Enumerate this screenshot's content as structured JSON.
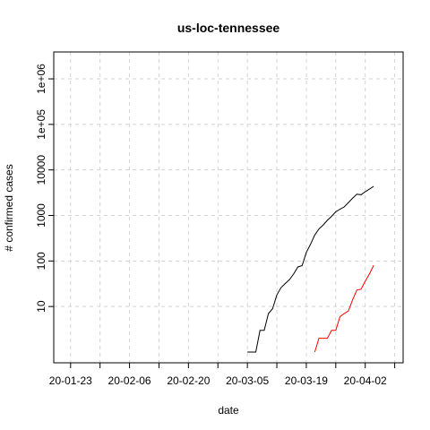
{
  "chart_data": {
    "type": "line",
    "title": "us-loc-tennessee",
    "x_label": "date",
    "y_label": "# confirmed cases",
    "log_y": true,
    "grid": true,
    "x": [
      "20-03-05",
      "20-03-06",
      "20-03-07",
      "20-03-08",
      "20-03-09",
      "20-03-10",
      "20-03-11",
      "20-03-12",
      "20-03-13",
      "20-03-14",
      "20-03-15",
      "20-03-16",
      "20-03-17",
      "20-03-18",
      "20-03-19",
      "20-03-20",
      "20-03-21",
      "20-03-22",
      "20-03-23",
      "20-03-24",
      "20-03-25",
      "20-03-26",
      "20-03-27",
      "20-03-28",
      "20-03-29",
      "20-03-30",
      "20-03-31",
      "20-04-01",
      "20-04-02",
      "20-04-03",
      "20-04-04"
    ],
    "series": [
      {
        "color": "#000000",
        "values": [
          1,
          1,
          1,
          3,
          3,
          7,
          9,
          18,
          26,
          32,
          39,
          52,
          74,
          79,
          154,
          233,
          371,
          505,
          615,
          784,
          957,
          1203,
          1373,
          1537,
          1917,
          2391,
          2933,
          2845,
          3321,
          3802,
          4362
        ]
      },
      {
        "color": "#ff0000",
        "values": [
          null,
          null,
          null,
          null,
          null,
          null,
          null,
          null,
          null,
          null,
          null,
          null,
          null,
          null,
          null,
          null,
          1,
          2,
          2,
          2,
          3,
          3,
          6,
          7,
          8,
          14,
          23,
          24,
          36,
          52,
          80
        ]
      }
    ],
    "xlim": [
      "20-01-19",
      "20-04-11"
    ],
    "xticks": [
      "20-01-23",
      "20-02-06",
      "20-02-20",
      "20-03-05",
      "20-03-19",
      "20-04-02"
    ],
    "xticks_minor": [
      "20-01-30",
      "20-02-13",
      "20-02-27",
      "20-03-12",
      "20-03-26",
      "20-04-09"
    ],
    "ylim": [
      0.58,
      3900000
    ],
    "yticks": [
      10,
      100,
      1000,
      10000,
      {
        "value": 100000,
        "label": "1e+05"
      },
      {
        "value": 1000000,
        "label": "1e+06"
      }
    ]
  }
}
